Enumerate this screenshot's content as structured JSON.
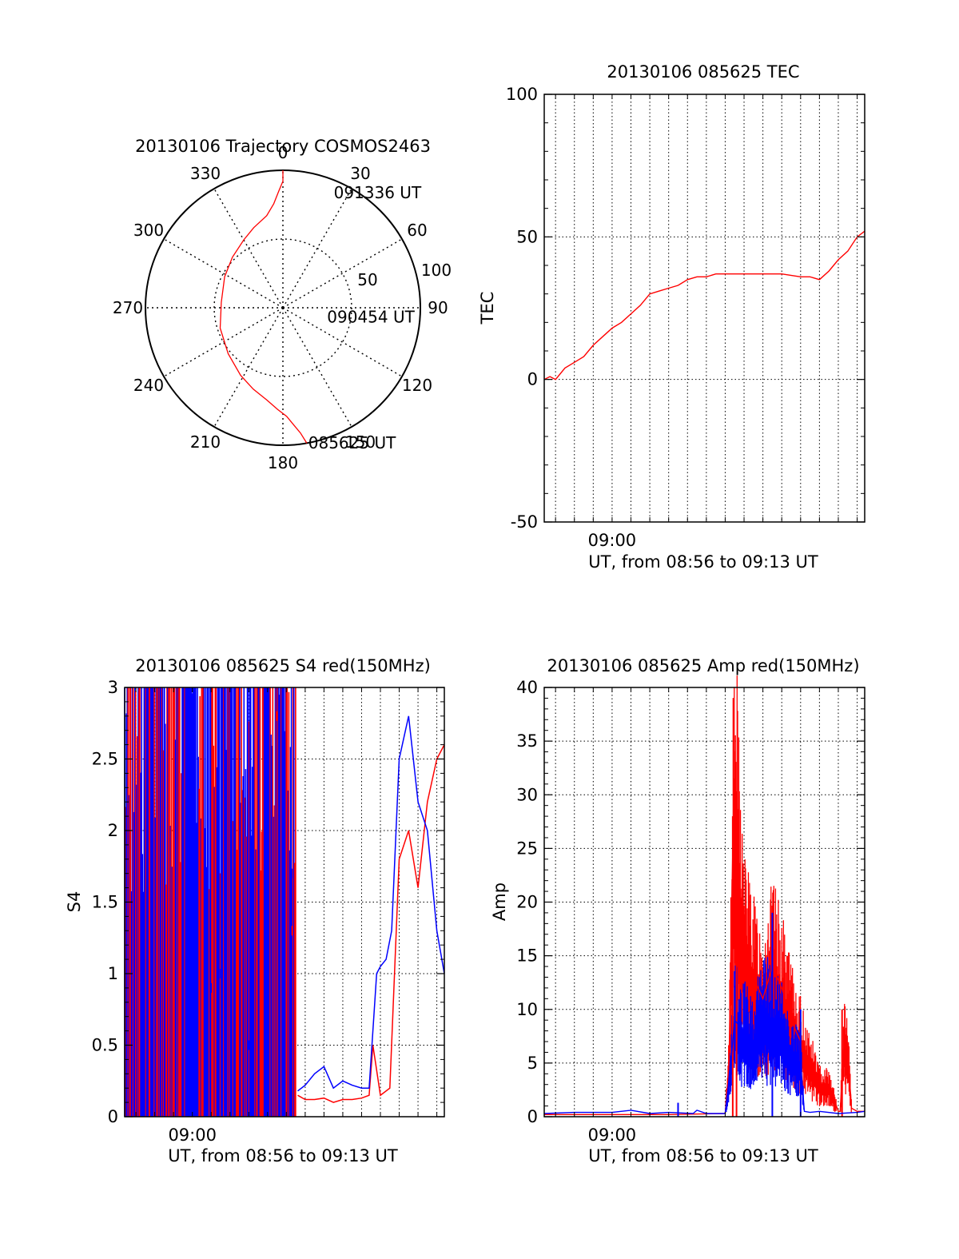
{
  "colors": {
    "red": "#ff0000",
    "blue": "#0000ff",
    "axis": "#000000",
    "grid": "#000000"
  },
  "chart_data": [
    {
      "id": "trajectory",
      "type": "scatter",
      "projection": "polar",
      "title": "20130106 Trajectory COSMOS2463",
      "azimuth_labels": [
        "0",
        "30",
        "60",
        "90",
        "120",
        "150",
        "180",
        "210",
        "240",
        "270",
        "300",
        "330"
      ],
      "radius_labels": [
        "50",
        "100"
      ],
      "elevation_rings": [
        50,
        100
      ],
      "grid": true,
      "series": [
        {
          "color": "red",
          "points": [
            [
              170,
              100
            ],
            [
              172,
              92
            ],
            [
              175,
              85
            ],
            [
              178,
              79
            ],
            [
              183,
              74
            ],
            [
              190,
              68
            ],
            [
              200,
              63
            ],
            [
              212,
              58
            ],
            [
              230,
              52
            ],
            [
              252,
              48
            ],
            [
              275,
              45
            ],
            [
              298,
              48
            ],
            [
              315,
              52
            ],
            [
              330,
              57
            ],
            [
              340,
              62
            ],
            [
              350,
              68
            ],
            [
              355,
              76
            ],
            [
              358,
              85
            ],
            [
              360,
              92
            ],
            [
              360,
              100
            ]
          ]
        }
      ],
      "annotations": [
        {
          "text": "091336 UT",
          "azimuth": 25,
          "radius": 93
        },
        {
          "text": "090454 UT",
          "azimuth": 100,
          "radius": 35
        },
        {
          "text": "085625 UT",
          "azimuth": 168,
          "radius": 100
        }
      ]
    },
    {
      "id": "tec",
      "type": "line",
      "title": "20130106 085625 TEC",
      "xlabel": "UT, from 08:56 to 09:13 UT",
      "ylabel": "TEC",
      "xlim": [
        -3.6,
        13.4
      ],
      "ylim": [
        -50,
        100
      ],
      "yticks": [
        -50,
        0,
        50,
        100
      ],
      "xticks": [
        {
          "value": 0,
          "label": "09:00"
        }
      ],
      "grid": true,
      "series": [
        {
          "color": "red",
          "x": [
            -3.6,
            -3.3,
            -3.0,
            -2.5,
            -2.0,
            -1.5,
            -1.0,
            -0.5,
            0.0,
            0.5,
            1.0,
            1.5,
            2.0,
            2.5,
            3.0,
            3.5,
            4.0,
            4.5,
            5.0,
            5.5,
            6.0,
            7.0,
            8.0,
            9.0,
            10.0,
            10.5,
            11.0,
            11.5,
            12.0,
            12.5,
            13.0,
            13.4
          ],
          "y": [
            0,
            1,
            0,
            4,
            6,
            8,
            12,
            15,
            18,
            20,
            23,
            26,
            30,
            31,
            32,
            33,
            35,
            36,
            36,
            37,
            37,
            37,
            37,
            37,
            36,
            36,
            35,
            38,
            42,
            45,
            50,
            52
          ]
        }
      ]
    },
    {
      "id": "s4",
      "type": "line",
      "title": "20130106 085625 S4 red(150MHz)",
      "xlabel": "UT, from 08:56 to 09:13 UT",
      "ylabel": "S4",
      "xlim": [
        -3.6,
        13.4
      ],
      "ylim": [
        0,
        3
      ],
      "yticks": [
        0,
        0.5,
        1,
        1.5,
        2,
        2.5,
        3
      ],
      "ytick_labels": [
        "0",
        "0.5",
        "1",
        "1.5",
        "2",
        "2.5",
        "3"
      ],
      "xticks": [
        {
          "value": 0,
          "label": "09:00"
        }
      ],
      "grid": true,
      "dense_region": {
        "x": [
          -3.6,
          5.5
        ]
      },
      "series": [
        {
          "color": "red",
          "x": [
            5.6,
            6.0,
            6.5,
            7.0,
            7.5,
            8.0,
            8.5,
            9.0,
            9.4,
            9.6,
            10.0,
            10.5,
            11.0,
            11.5,
            12.0,
            12.5,
            13.0,
            13.4
          ],
          "y": [
            0.15,
            0.12,
            0.12,
            0.13,
            0.1,
            0.12,
            0.12,
            0.13,
            0.15,
            0.5,
            0.15,
            0.2,
            1.8,
            2.0,
            1.6,
            2.2,
            2.5,
            2.6
          ],
          "markers": [
            [
              5.3,
              1.3
            ],
            [
              5.0,
              1.0
            ],
            [
              4.5,
              2.8
            ]
          ]
        },
        {
          "color": "blue",
          "x": [
            5.6,
            6.0,
            6.5,
            7.0,
            7.5,
            8.0,
            8.5,
            9.0,
            9.4,
            9.8,
            10.0,
            10.3,
            10.6,
            11.0,
            11.5,
            12.0,
            12.5,
            13.0,
            13.4
          ],
          "y": [
            0.18,
            0.22,
            0.3,
            0.35,
            0.2,
            0.25,
            0.22,
            0.2,
            0.2,
            1.0,
            1.05,
            1.1,
            1.3,
            2.5,
            2.8,
            2.2,
            2.0,
            1.3,
            1.0
          ],
          "markers": [
            [
              1.0,
              0.9
            ],
            [
              1.5,
              1.0
            ],
            [
              3.0,
              0.5
            ],
            [
              5.3,
              1.7
            ]
          ]
        }
      ]
    },
    {
      "id": "amp",
      "type": "line",
      "title": "20130106 085625 Amp red(150MHz)",
      "xlabel": "UT, from 08:56 to 09:13 UT",
      "ylabel": "Amp",
      "xlim": [
        -3.6,
        13.4
      ],
      "ylim": [
        0,
        40
      ],
      "yticks": [
        0,
        5,
        10,
        15,
        20,
        25,
        30,
        35,
        40
      ],
      "xticks": [
        {
          "value": 0,
          "label": "09:00"
        }
      ],
      "grid": true,
      "series": [
        {
          "color": "red",
          "x": [
            -3.6,
            3.0,
            6.0,
            6.2,
            6.4,
            6.6,
            6.8,
            7.0,
            7.5,
            8.0,
            8.5,
            9.0,
            9.5,
            10.0,
            10.5,
            10.8,
            11.0,
            11.5,
            12.0,
            12.1,
            12.3,
            12.5,
            12.7,
            13.0,
            13.4
          ],
          "y": [
            0.2,
            0.2,
            0.3,
            5,
            25,
            27,
            20,
            16,
            13,
            11,
            14,
            12,
            9,
            7,
            5,
            4,
            3,
            3,
            0.5,
            0.5,
            7,
            6,
            0.8,
            0.5,
            0.5
          ],
          "peaks": [
            [
              6.4,
              28
            ],
            [
              6.6,
              26
            ],
            [
              12.2,
              10
            ]
          ]
        },
        {
          "color": "blue",
          "x": [
            -3.6,
            -2.0,
            0.0,
            1.0,
            2.0,
            3.0,
            4.3,
            4.5,
            5.0,
            6.0,
            6.3,
            6.5,
            7.0,
            7.5,
            8.0,
            8.5,
            9.0,
            9.5,
            10.0,
            10.2,
            10.5,
            11.0,
            12.0,
            13.0,
            13.4
          ],
          "y": [
            0.3,
            0.4,
            0.4,
            0.6,
            0.3,
            0.4,
            0.3,
            0.6,
            0.3,
            0.3,
            5,
            9,
            8,
            7,
            10,
            9,
            8,
            6,
            5,
            0.5,
            0.4,
            0.5,
            0.3,
            0.4,
            0.5
          ],
          "peaks": [
            [
              3.5,
              1.3
            ],
            [
              8.5,
              19
            ],
            [
              10.0,
              10
            ]
          ]
        }
      ]
    }
  ]
}
